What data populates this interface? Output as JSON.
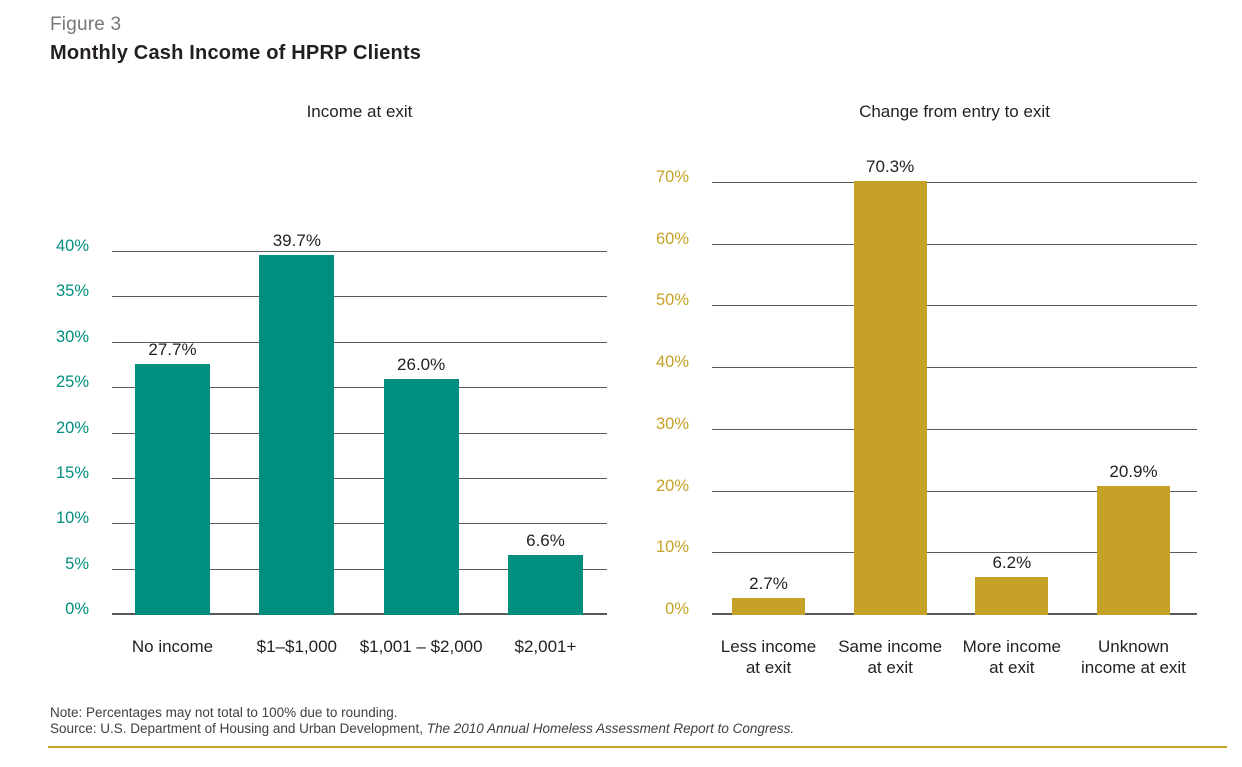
{
  "figure": {
    "label": "Figure 3",
    "title": "Monthly Cash Income of HPRP Clients"
  },
  "footer": {
    "note": "Note: Percentages may not total to 100% due to rounding.",
    "source_prefix": "Source: U.S. Department of Housing and Urban Development, ",
    "source_italic": "The 2010 Annual Homeless Assessment Report to Congress."
  },
  "colors": {
    "teal": "#008E7E",
    "gold": "#C5A227",
    "gridline": "#58595B",
    "figure_label_gray": "#77787B",
    "text_dark": "#231F20"
  },
  "chart_data": [
    {
      "type": "bar",
      "title": "Income at exit",
      "categories": [
        "No income",
        "$1–$1,000",
        "$1,001 – $2,000",
        "$2,001+"
      ],
      "values": [
        27.7,
        39.7,
        26.0,
        6.6
      ],
      "value_labels": [
        "27.7%",
        "39.7%",
        "26.0%",
        "6.6%"
      ],
      "bar_color": "#008E7E",
      "tick_color": "#008E7E",
      "grid_color": "#58595B",
      "ylim": [
        0,
        40
      ],
      "yticks": [
        0,
        5,
        10,
        15,
        20,
        25,
        30,
        35,
        40
      ],
      "ytick_suffix": "%",
      "grid": true,
      "xlabel": "",
      "ylabel": "",
      "legend": false
    },
    {
      "type": "bar",
      "title": "Change from entry to exit",
      "categories": [
        "Less income\nat exit",
        "Same income\nat exit",
        "More income\nat exit",
        "Unknown\nincome at exit"
      ],
      "values": [
        2.7,
        70.3,
        6.2,
        20.9
      ],
      "value_labels": [
        "2.7%",
        "70.3%",
        "6.2%",
        "20.9%"
      ],
      "bar_color": "#C5A227",
      "tick_color": "#C5A227",
      "grid_color": "#58595B",
      "ylim": [
        0,
        70
      ],
      "yticks": [
        0,
        10,
        20,
        30,
        40,
        50,
        60,
        70
      ],
      "ytick_suffix": "%",
      "grid": true,
      "xlabel": "",
      "ylabel": "",
      "legend": false
    }
  ]
}
